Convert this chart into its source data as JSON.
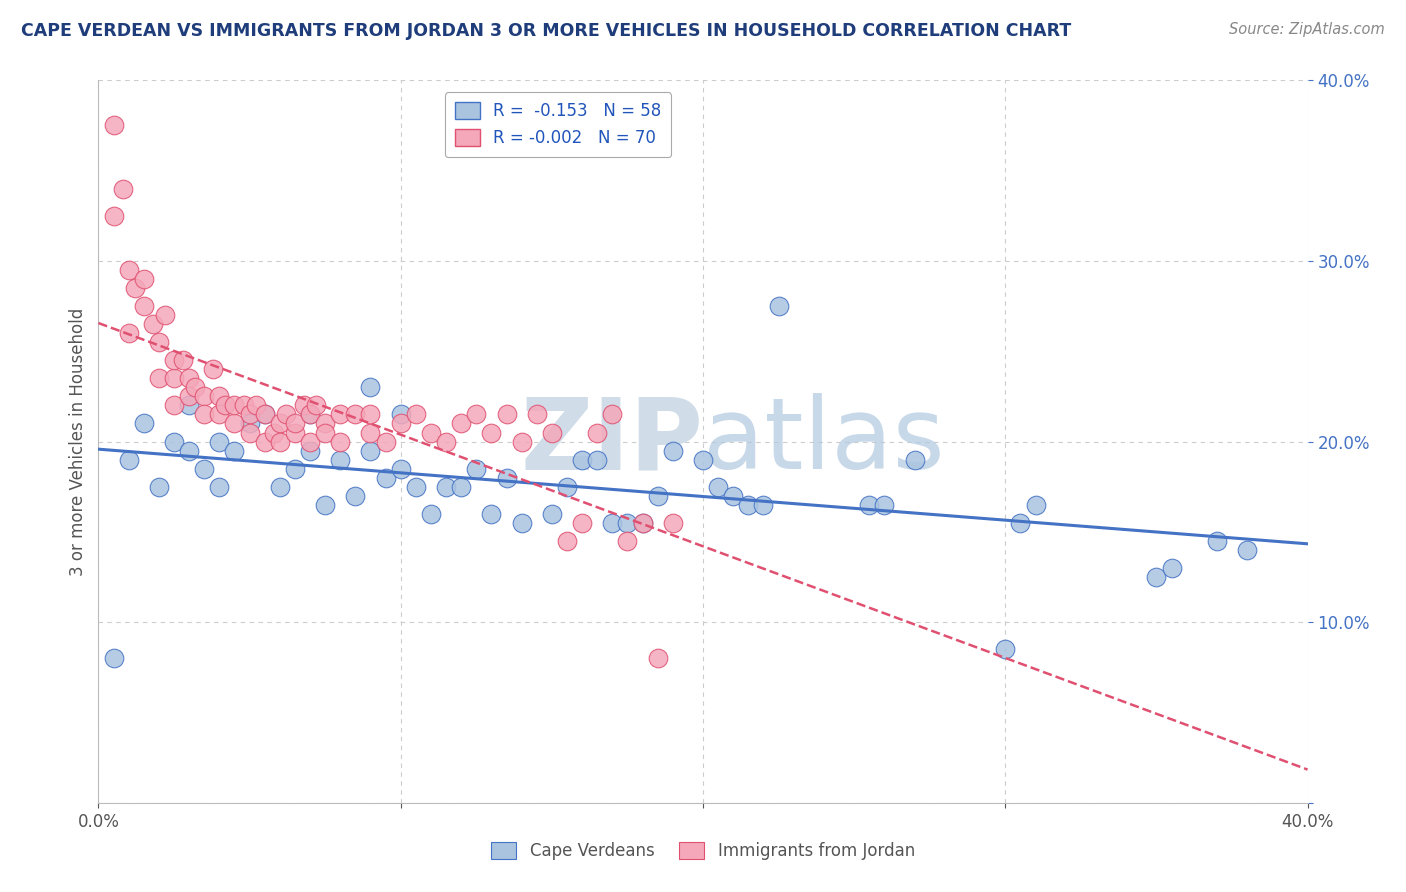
{
  "title": "CAPE VERDEAN VS IMMIGRANTS FROM JORDAN 3 OR MORE VEHICLES IN HOUSEHOLD CORRELATION CHART",
  "source": "Source: ZipAtlas.com",
  "ylabel": "3 or more Vehicles in Household",
  "legend_label1": "Cape Verdeans",
  "legend_label2": "Immigrants from Jordan",
  "r1": -0.153,
  "n1": 58,
  "r2": -0.002,
  "n2": 70,
  "xlim": [
    0.0,
    0.4
  ],
  "ylim": [
    0.0,
    0.4
  ],
  "blue_scatter_x": [
    0.005,
    0.01,
    0.015,
    0.02,
    0.025,
    0.03,
    0.03,
    0.035,
    0.04,
    0.04,
    0.045,
    0.05,
    0.055,
    0.06,
    0.065,
    0.07,
    0.07,
    0.075,
    0.08,
    0.085,
    0.09,
    0.09,
    0.095,
    0.1,
    0.1,
    0.105,
    0.11,
    0.115,
    0.12,
    0.125,
    0.13,
    0.135,
    0.14,
    0.15,
    0.155,
    0.16,
    0.165,
    0.17,
    0.175,
    0.18,
    0.185,
    0.19,
    0.2,
    0.205,
    0.21,
    0.215,
    0.22,
    0.225,
    0.255,
    0.26,
    0.27,
    0.3,
    0.305,
    0.31,
    0.35,
    0.355,
    0.37,
    0.38
  ],
  "blue_scatter_y": [
    0.08,
    0.19,
    0.21,
    0.175,
    0.2,
    0.22,
    0.195,
    0.185,
    0.175,
    0.2,
    0.195,
    0.21,
    0.215,
    0.175,
    0.185,
    0.215,
    0.195,
    0.165,
    0.19,
    0.17,
    0.195,
    0.23,
    0.18,
    0.215,
    0.185,
    0.175,
    0.16,
    0.175,
    0.175,
    0.185,
    0.16,
    0.18,
    0.155,
    0.16,
    0.175,
    0.19,
    0.19,
    0.155,
    0.155,
    0.155,
    0.17,
    0.195,
    0.19,
    0.175,
    0.17,
    0.165,
    0.165,
    0.275,
    0.165,
    0.165,
    0.19,
    0.085,
    0.155,
    0.165,
    0.125,
    0.13,
    0.145,
    0.14
  ],
  "pink_scatter_x": [
    0.005,
    0.005,
    0.008,
    0.01,
    0.01,
    0.012,
    0.015,
    0.015,
    0.018,
    0.02,
    0.02,
    0.022,
    0.025,
    0.025,
    0.025,
    0.028,
    0.03,
    0.03,
    0.032,
    0.035,
    0.035,
    0.038,
    0.04,
    0.04,
    0.042,
    0.045,
    0.045,
    0.048,
    0.05,
    0.05,
    0.052,
    0.055,
    0.055,
    0.058,
    0.06,
    0.06,
    0.062,
    0.065,
    0.065,
    0.068,
    0.07,
    0.07,
    0.072,
    0.075,
    0.075,
    0.08,
    0.08,
    0.085,
    0.09,
    0.09,
    0.095,
    0.1,
    0.105,
    0.11,
    0.115,
    0.12,
    0.125,
    0.13,
    0.135,
    0.14,
    0.145,
    0.15,
    0.155,
    0.16,
    0.165,
    0.17,
    0.175,
    0.18,
    0.185,
    0.19
  ],
  "pink_scatter_y": [
    0.375,
    0.325,
    0.34,
    0.295,
    0.26,
    0.285,
    0.275,
    0.29,
    0.265,
    0.255,
    0.235,
    0.27,
    0.235,
    0.245,
    0.22,
    0.245,
    0.235,
    0.225,
    0.23,
    0.225,
    0.215,
    0.24,
    0.225,
    0.215,
    0.22,
    0.21,
    0.22,
    0.22,
    0.215,
    0.205,
    0.22,
    0.2,
    0.215,
    0.205,
    0.21,
    0.2,
    0.215,
    0.205,
    0.21,
    0.22,
    0.215,
    0.2,
    0.22,
    0.21,
    0.205,
    0.215,
    0.2,
    0.215,
    0.205,
    0.215,
    0.2,
    0.21,
    0.215,
    0.205,
    0.2,
    0.21,
    0.215,
    0.205,
    0.215,
    0.2,
    0.215,
    0.205,
    0.145,
    0.155,
    0.205,
    0.215,
    0.145,
    0.155,
    0.08,
    0.155
  ],
  "blue_color": "#aac4e0",
  "pink_color": "#f4a8ba",
  "blue_line_color": "#4472c4",
  "pink_line_color": "#e05070",
  "title_color": "#1f3d7a",
  "source_color": "#888888",
  "legend_text_color": "#2255bb",
  "background_color": "#ffffff",
  "grid_color": "#cccccc",
  "watermark_color": "#d0dce8",
  "watermark_text": "ZIPatlas"
}
